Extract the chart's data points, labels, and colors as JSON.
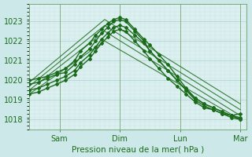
{
  "bg_color": "#cce8e8",
  "plot_bg_color": "#ddf0f0",
  "grid_color_major": "#aacfcf",
  "grid_color_minor": "#c4e4e4",
  "line_color": "#1a6b1a",
  "xlabel": "Pression niveau de la mer( hPa )",
  "ylim": [
    1017.5,
    1023.8
  ],
  "xlim": [
    0,
    7.2
  ],
  "ytick_values": [
    1018,
    1019,
    1020,
    1021,
    1022,
    1023
  ],
  "xtick_positions": [
    1,
    3,
    5,
    7
  ],
  "xtick_labels": [
    "Sam",
    "Dim",
    "Lun",
    "Mar"
  ],
  "marked_series": [
    {
      "x": [
        0.0,
        0.3,
        0.6,
        0.9,
        1.2,
        1.5,
        1.7,
        2.0,
        2.2,
        2.4,
        2.6,
        2.8,
        3.0,
        3.2,
        3.5,
        3.8,
        4.0,
        4.3,
        4.6,
        4.9,
        5.2,
        5.5,
        5.8,
        6.1,
        6.4,
        6.7,
        7.0
      ],
      "y": [
        1019.8,
        1019.9,
        1020.1,
        1020.3,
        1020.4,
        1020.8,
        1021.2,
        1021.6,
        1022.0,
        1022.4,
        1022.7,
        1023.0,
        1023.1,
        1023.0,
        1022.5,
        1022.0,
        1021.5,
        1021.0,
        1020.5,
        1020.0,
        1019.5,
        1019.0,
        1018.7,
        1018.5,
        1018.3,
        1018.1,
        1018.0
      ]
    },
    {
      "x": [
        0.0,
        0.3,
        0.6,
        0.9,
        1.2,
        1.5,
        1.7,
        2.0,
        2.2,
        2.4,
        2.6,
        2.8,
        3.0,
        3.2,
        3.5,
        3.8,
        4.0,
        4.3,
        4.6,
        4.9,
        5.2,
        5.5,
        5.8,
        6.1,
        6.4,
        6.7,
        7.0
      ],
      "y": [
        1020.0,
        1020.1,
        1020.2,
        1020.4,
        1020.6,
        1021.0,
        1021.5,
        1021.9,
        1022.3,
        1022.6,
        1022.9,
        1023.1,
        1023.2,
        1023.1,
        1022.6,
        1022.1,
        1021.8,
        1021.3,
        1020.8,
        1020.2,
        1019.6,
        1019.1,
        1018.8,
        1018.6,
        1018.4,
        1018.2,
        1018.0
      ]
    },
    {
      "x": [
        0.0,
        0.3,
        0.6,
        0.9,
        1.2,
        1.5,
        1.7,
        2.0,
        2.2,
        2.4,
        2.6,
        2.8,
        3.0,
        3.2,
        3.5,
        3.8,
        4.0,
        4.3,
        4.6,
        4.9,
        5.2,
        5.5,
        5.8,
        6.1,
        6.4,
        6.7,
        7.0
      ],
      "y": [
        1019.5,
        1019.6,
        1019.8,
        1020.0,
        1020.2,
        1020.5,
        1020.9,
        1021.3,
        1021.7,
        1022.1,
        1022.4,
        1022.7,
        1022.8,
        1022.7,
        1022.3,
        1021.9,
        1021.5,
        1021.0,
        1020.5,
        1020.0,
        1019.5,
        1019.1,
        1018.8,
        1018.6,
        1018.4,
        1018.2,
        1018.1
      ]
    },
    {
      "x": [
        0.0,
        0.3,
        0.6,
        0.9,
        1.2,
        1.5,
        1.7,
        2.0,
        2.2,
        2.4,
        2.6,
        2.8,
        3.0,
        3.2,
        3.5,
        3.8,
        4.0,
        4.3,
        4.6,
        4.9,
        5.2,
        5.5,
        5.8,
        6.1,
        6.4,
        6.7,
        7.0
      ],
      "y": [
        1019.3,
        1019.4,
        1019.6,
        1019.8,
        1020.0,
        1020.3,
        1020.7,
        1021.1,
        1021.5,
        1021.9,
        1022.2,
        1022.5,
        1022.6,
        1022.5,
        1022.0,
        1021.5,
        1021.1,
        1020.6,
        1020.1,
        1019.7,
        1019.3,
        1018.9,
        1018.6,
        1018.5,
        1018.3,
        1018.2,
        1018.3
      ]
    }
  ],
  "straight_series": [
    {
      "x": [
        0.0,
        2.5,
        7.0
      ],
      "y": [
        1019.7,
        1022.8,
        1018.5
      ]
    },
    {
      "x": [
        0.0,
        2.5,
        7.0
      ],
      "y": [
        1019.5,
        1022.5,
        1018.2
      ]
    },
    {
      "x": [
        0.0,
        2.5,
        7.0
      ],
      "y": [
        1019.3,
        1022.0,
        1018.0
      ]
    },
    {
      "x": [
        0.0,
        2.5,
        7.0
      ],
      "y": [
        1019.9,
        1023.1,
        1018.8
      ]
    }
  ],
  "vline_x": [
    1,
    3,
    5,
    7
  ],
  "vline_color": "#7aaa7a"
}
